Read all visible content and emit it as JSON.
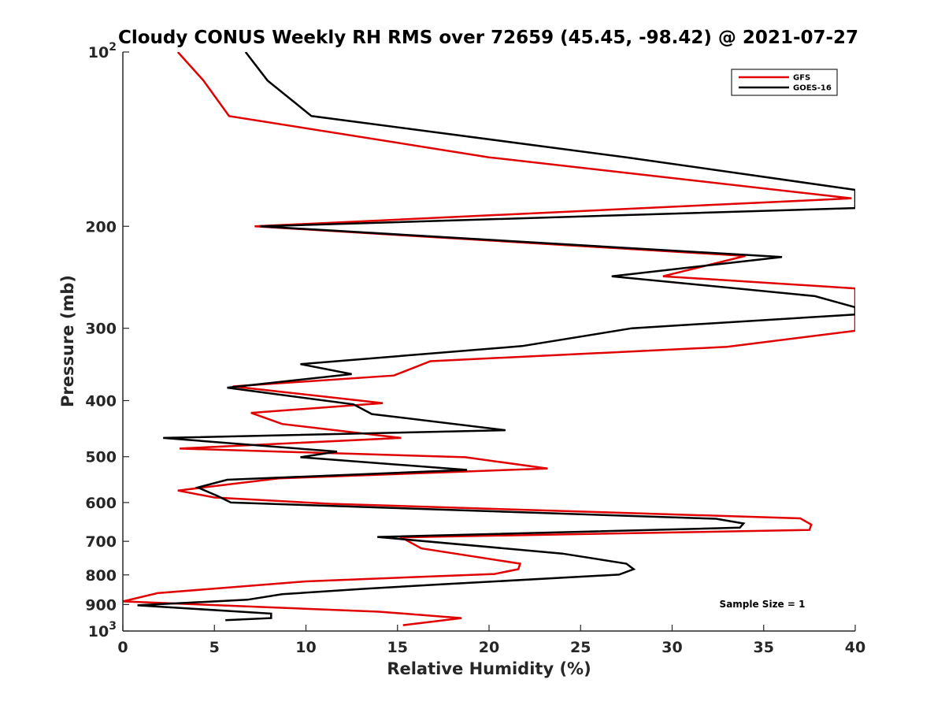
{
  "chart_data": {
    "type": "line",
    "title": "Cloudy CONUS Weekly RH RMS over 72659 (45.45, -98.42) @ 2021-07-27",
    "xlabel": "Relative Humidity (%)",
    "ylabel": "Pressure (mb)",
    "xlim": [
      0,
      40
    ],
    "ylim": [
      100,
      1000
    ],
    "y_scale": "log",
    "y_reversed": true,
    "x_ticks": [
      0,
      5,
      10,
      15,
      20,
      25,
      30,
      35,
      40
    ],
    "x_tick_labels": [
      "0",
      "5",
      "10",
      "15",
      "20",
      "25",
      "30",
      "35",
      "40"
    ],
    "y_ticks": [
      100,
      200,
      300,
      400,
      500,
      600,
      700,
      800,
      900,
      1000
    ],
    "y_tick_labels": [
      {
        "base": "10",
        "exp": "2"
      },
      {
        "base": "200",
        "exp": ""
      },
      {
        "base": "300",
        "exp": ""
      },
      {
        "base": "400",
        "exp": ""
      },
      {
        "base": "500",
        "exp": ""
      },
      {
        "base": "600",
        "exp": ""
      },
      {
        "base": "700",
        "exp": ""
      },
      {
        "base": "800",
        "exp": ""
      },
      {
        "base": "900",
        "exp": ""
      },
      {
        "base": "10",
        "exp": "3"
      }
    ],
    "grid": false,
    "legend_position": "top-right",
    "annotation": "Sample Size = 1",
    "series": [
      {
        "name": "GFS",
        "color": "#e00000",
        "points": [
          [
            3.0,
            100
          ],
          [
            4.4,
            112
          ],
          [
            5.8,
            129
          ],
          [
            20.0,
            152
          ],
          [
            39.8,
            179
          ],
          [
            7.2,
            200
          ],
          [
            34.0,
            225
          ],
          [
            29.5,
            244
          ],
          [
            40.0,
            256
          ],
          [
            40.0,
            303
          ],
          [
            33.0,
            323
          ],
          [
            16.8,
            342
          ],
          [
            14.8,
            362
          ],
          [
            6.0,
            378
          ],
          [
            14.2,
            404
          ],
          [
            7.0,
            420
          ],
          [
            8.7,
            439
          ],
          [
            15.2,
            464
          ],
          [
            3.1,
            484
          ],
          [
            18.7,
            501
          ],
          [
            23.2,
            524
          ],
          [
            8.5,
            545
          ],
          [
            3.0,
            572
          ],
          [
            5.0,
            588
          ],
          [
            11.3,
            603
          ],
          [
            37.0,
            639
          ],
          [
            37.6,
            655
          ],
          [
            37.5,
            669
          ],
          [
            15.2,
            689
          ],
          [
            16.3,
            720
          ],
          [
            21.7,
            765
          ],
          [
            21.6,
            782
          ],
          [
            20.3,
            797
          ],
          [
            10.0,
            821
          ],
          [
            1.9,
            860
          ],
          [
            0.0,
            889
          ],
          [
            14.0,
            926
          ],
          [
            18.5,
            950
          ],
          [
            15.3,
            977
          ]
        ]
      },
      {
        "name": "GOES-16",
        "color": "#000000",
        "points": [
          [
            6.7,
            100
          ],
          [
            7.9,
            112
          ],
          [
            10.3,
            129
          ],
          [
            27.5,
            152
          ],
          [
            40.0,
            173
          ],
          [
            40.0,
            186
          ],
          [
            7.5,
            200
          ],
          [
            36.0,
            226
          ],
          [
            26.7,
            244
          ],
          [
            37.8,
            264
          ],
          [
            40.0,
            276
          ],
          [
            40.0,
            284
          ],
          [
            27.8,
            300
          ],
          [
            21.8,
            322
          ],
          [
            9.7,
            346
          ],
          [
            12.5,
            360
          ],
          [
            5.7,
            380
          ],
          [
            12.6,
            406
          ],
          [
            13.6,
            422
          ],
          [
            20.9,
            450
          ],
          [
            2.2,
            464
          ],
          [
            11.7,
            490
          ],
          [
            9.7,
            501
          ],
          [
            18.8,
            527
          ],
          [
            5.7,
            548
          ],
          [
            4.1,
            565
          ],
          [
            5.2,
            585
          ],
          [
            5.9,
            600
          ],
          [
            32.4,
            640
          ],
          [
            33.9,
            652
          ],
          [
            33.7,
            663
          ],
          [
            13.9,
            688
          ],
          [
            24.0,
            735
          ],
          [
            27.5,
            765
          ],
          [
            27.9,
            782
          ],
          [
            27.1,
            799
          ],
          [
            17.3,
            831
          ],
          [
            13.3,
            845
          ],
          [
            8.7,
            864
          ],
          [
            6.8,
            883
          ],
          [
            0.8,
            903
          ],
          [
            8.1,
            933
          ],
          [
            8.1,
            950
          ],
          [
            5.6,
            958
          ]
        ]
      }
    ]
  }
}
